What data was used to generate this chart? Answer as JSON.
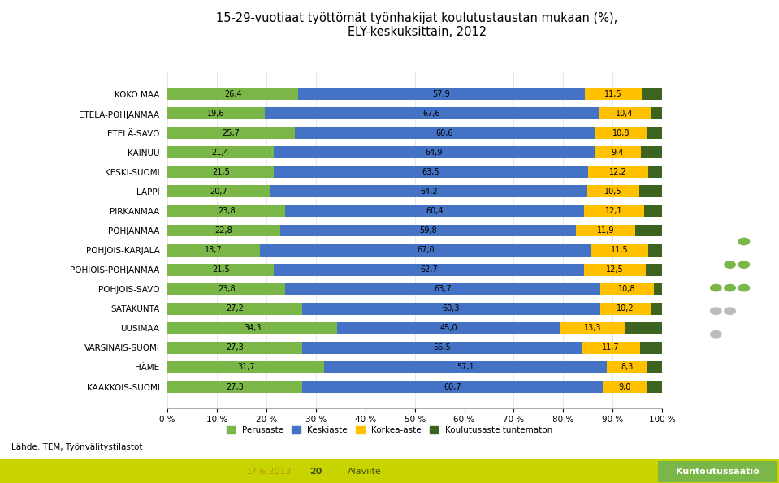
{
  "title": "15-29-vuotiaat työttömät työnhakijat koulutustaustan mukaan (%),\nELY-keskuksittain, 2012",
  "categories": [
    "KOKO MAA",
    "ETELÄ-POHJANMAA",
    "ETELÄ-SAVO",
    "KAINUU",
    "KESKI-SUOMI",
    "LAPPI",
    "PIRKANMAA",
    "POHJANMAA",
    "POHJOIS-KARJALA",
    "POHJOIS-POHJANMAA",
    "POHJOIS-SAVO",
    "SATAKUNTA",
    "UUSIMAA",
    "VARSINAIS-SUOMI",
    "HÄME",
    "KAAKKOIS-SUOMI"
  ],
  "perusaste": [
    26.4,
    19.6,
    25.7,
    21.4,
    21.5,
    20.7,
    23.8,
    22.8,
    18.7,
    21.5,
    23.8,
    27.2,
    34.3,
    27.3,
    31.7,
    27.3
  ],
  "keskiaste": [
    57.9,
    67.6,
    60.6,
    64.9,
    63.5,
    64.2,
    60.4,
    59.8,
    67.0,
    62.7,
    63.7,
    60.3,
    45.0,
    56.5,
    57.1,
    60.7
  ],
  "korkea_aste": [
    11.5,
    10.4,
    10.8,
    9.4,
    12.2,
    10.5,
    12.1,
    11.9,
    11.5,
    12.5,
    10.8,
    10.2,
    13.3,
    11.7,
    8.3,
    9.0
  ],
  "tuntematon": [
    4.2,
    2.4,
    2.9,
    4.3,
    2.8,
    4.6,
    3.7,
    5.5,
    2.8,
    3.3,
    1.7,
    2.3,
    7.4,
    4.5,
    2.9,
    3.0
  ],
  "color_perusaste": "#7ab648",
  "color_keskiaste": "#4472c4",
  "color_korkea_aste": "#ffc000",
  "color_tuntematon": "#3d6321",
  "legend_labels": [
    "Perusaste",
    "Keskiaste",
    "Korkea-aste",
    "Koulutusaste tuntematon"
  ],
  "xlabel_ticks": [
    "0 %",
    "10 %",
    "20 %",
    "30 %",
    "40 %",
    "50 %",
    "60 %",
    "70 %",
    "80 %",
    "90 %",
    "100 %"
  ],
  "source_text": "Lähde: TEM, Työnvälitystilastot",
  "footer_date": "17.6.2013",
  "footer_num": "20",
  "footer_label": "Alaviite",
  "footer_right": "Kuntoutussäätiö",
  "bg_color": "#ffffff",
  "bar_height": 0.62,
  "label_fontsize": 7.0,
  "title_fontsize": 10.5,
  "dot_colors_green": "#7ab648",
  "dot_colors_gray": "#bbbbbb",
  "footer_bg": "#c8d400",
  "footer_right_bg": "#7ab648"
}
